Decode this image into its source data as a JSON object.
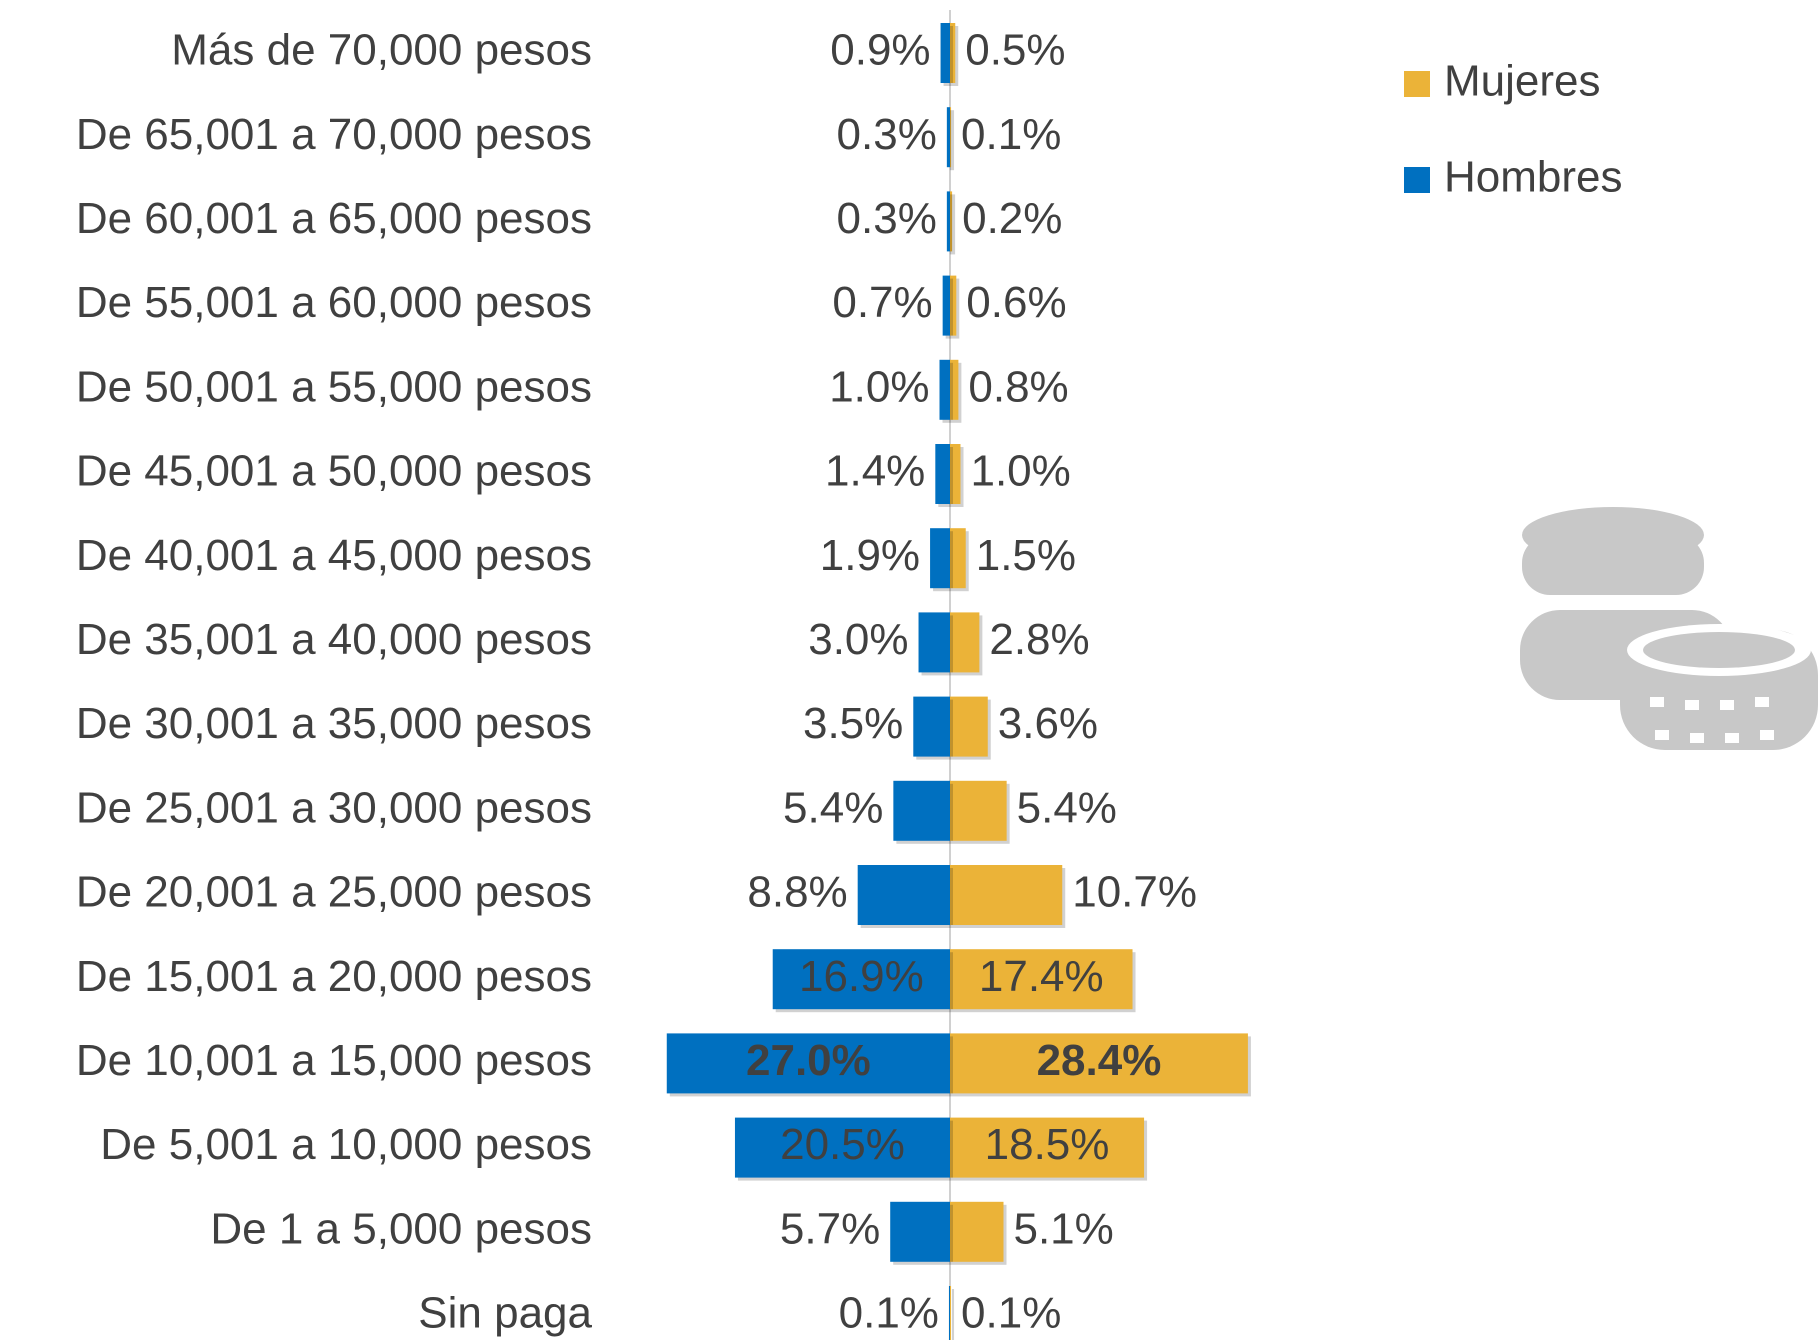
{
  "chart_data": {
    "type": "butterfly-bar",
    "categories": [
      "Más de 70,000 pesos",
      "De 65,001 a 70,000 pesos",
      "De 60,001 a 65,000 pesos",
      "De 55,001 a 60,000 pesos",
      "De 50,001 a 55,000 pesos",
      "De 45,001 a 50,000 pesos",
      "De 40,001 a 45,000 pesos",
      "De 35,001 a 40,000 pesos",
      "De 30,001 a 35,000 pesos",
      "De 25,001 a 30,000 pesos",
      "De 20,001 a 25,000 pesos",
      "De 15,001 a 20,000 pesos",
      "De 10,001 a 15,000 pesos",
      "De 5,001 a 10,000 pesos",
      "De 1 a 5,000 pesos",
      "Sin paga"
    ],
    "series": [
      {
        "name": "Mujeres",
        "color": "#ebb338",
        "side": "right",
        "values": [
          0.5,
          0.1,
          0.2,
          0.6,
          0.8,
          1.0,
          1.5,
          2.8,
          3.6,
          5.4,
          10.7,
          17.4,
          28.4,
          18.5,
          5.1,
          0.1
        ],
        "value_labels": [
          "0.5%",
          "0.1%",
          "0.2%",
          "0.6%",
          "0.8%",
          "1.0%",
          "1.5%",
          "2.8%",
          "3.6%",
          "5.4%",
          "10.7%",
          "17.4%",
          "28.4%",
          "18.5%",
          "5.1%",
          "0.1%"
        ]
      },
      {
        "name": "Hombres",
        "color": "#0070c0",
        "side": "left",
        "values": [
          0.9,
          0.3,
          0.3,
          0.7,
          1.0,
          1.4,
          1.9,
          3.0,
          3.5,
          5.4,
          8.8,
          16.9,
          27.0,
          20.5,
          5.7,
          0.1
        ],
        "value_labels": [
          "0.9%",
          "0.3%",
          "0.3%",
          "0.7%",
          "1.0%",
          "1.4%",
          "1.9%",
          "3.0%",
          "3.5%",
          "5.4%",
          "8.8%",
          "16.9%",
          "27.0%",
          "20.5%",
          "5.7%",
          "0.1%"
        ]
      }
    ]
  }
}
